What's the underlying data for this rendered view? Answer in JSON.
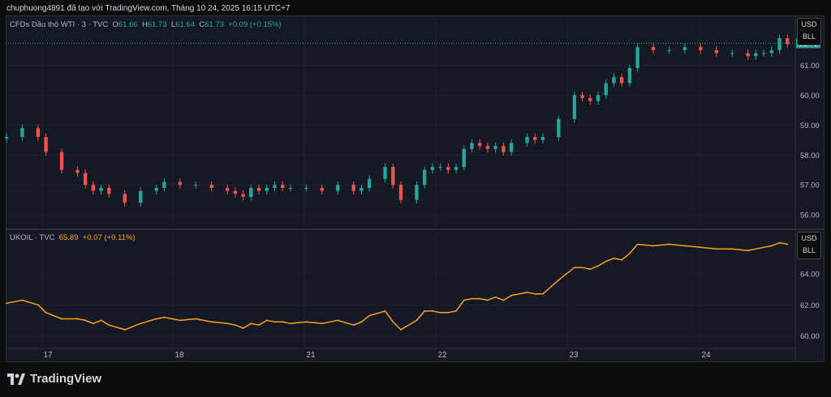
{
  "header": {
    "caption": "chuphuong4891 đã tạo với TradingView.com, Tháng 10 24, 2025 16:15 UTC+7"
  },
  "brand": {
    "name": "TradingView"
  },
  "currency": {
    "line1": "USD",
    "line2": "BLL"
  },
  "colors": {
    "up": "#26a69a",
    "down": "#ef5350",
    "ukoil": "#f7a21b",
    "background": "#151924",
    "grid": "#1e222d"
  },
  "wti_panel": {
    "symbol": "CFDs Dầu thô WTI · 3 · TVC",
    "open_label": "O",
    "open": "61.66",
    "high_label": "H",
    "high": "61.73",
    "low_label": "L",
    "low": "61.64",
    "close_label": "C",
    "close": "61.73",
    "change": "+0.09 (+0.15%)",
    "last_price_tag": "61.73"
  },
  "ukoil_panel": {
    "symbol": "UKOIL · TVC",
    "price": "65.89",
    "change": "+0.07 (+0.11%)"
  },
  "chart_data": [
    {
      "type": "candlestick",
      "title": "CFDs Dầu thô WTI · 3 · TVC",
      "x_tick_labels": [
        "17",
        "18",
        "21",
        "22",
        "23",
        "24"
      ],
      "y_ticks": [
        56.0,
        57.0,
        58.0,
        59.0,
        60.0,
        61.0
      ],
      "ylim": [
        55.6,
        62.2
      ],
      "grid": true,
      "series": [
        {
          "x": [
            0,
            2,
            4,
            5,
            7,
            9,
            10,
            11,
            12,
            13,
            15,
            17,
            19,
            20,
            22,
            24,
            26,
            28,
            29,
            30,
            31,
            32,
            33,
            34,
            35,
            36,
            38,
            40,
            42,
            44,
            45,
            46,
            48,
            49,
            50,
            52,
            53,
            54,
            55,
            56,
            57,
            58,
            59,
            60,
            61,
            62,
            63,
            64,
            66,
            67,
            68,
            70,
            72,
            73,
            74,
            75,
            76,
            77,
            78,
            79,
            80,
            82,
            84,
            86,
            88,
            90,
            92,
            94,
            95,
            96,
            97,
            98,
            99
          ],
          "close": [
            58.6,
            58.9,
            58.6,
            58.1,
            57.5,
            57.4,
            57.0,
            56.8,
            56.9,
            56.7,
            56.4,
            56.8,
            56.9,
            57.1,
            57.0,
            57.0,
            56.9,
            56.8,
            56.7,
            56.6,
            56.9,
            56.8,
            56.9,
            57.0,
            56.9,
            56.9,
            56.9,
            56.8,
            57.0,
            56.8,
            56.9,
            57.2,
            57.6,
            57.0,
            56.5,
            57.0,
            57.5,
            57.6,
            57.6,
            57.5,
            57.6,
            58.2,
            58.4,
            58.3,
            58.2,
            58.3,
            58.1,
            58.4,
            58.6,
            58.5,
            58.6,
            59.2,
            60.0,
            59.9,
            59.8,
            60.0,
            60.4,
            60.6,
            60.4,
            60.9,
            61.6,
            61.5,
            61.5,
            61.6,
            61.5,
            61.4,
            61.4,
            61.3,
            61.4,
            61.4,
            61.5,
            61.9,
            61.7
          ]
        }
      ]
    },
    {
      "type": "line",
      "title": "UKOIL · TVC",
      "x_tick_labels": [
        "17",
        "18",
        "21",
        "22",
        "23",
        "24"
      ],
      "y_ticks": [
        60.0,
        62.0,
        64.0
      ],
      "ylim": [
        59.3,
        66.5
      ],
      "grid": true,
      "series": [
        {
          "x": [
            0,
            2,
            4,
            5,
            7,
            9,
            10,
            11,
            12,
            13,
            15,
            17,
            19,
            20,
            22,
            24,
            26,
            28,
            29,
            30,
            31,
            32,
            33,
            34,
            35,
            36,
            38,
            40,
            42,
            44,
            45,
            46,
            48,
            49,
            50,
            52,
            53,
            54,
            55,
            56,
            57,
            58,
            59,
            60,
            61,
            62,
            63,
            64,
            66,
            67,
            68,
            70,
            72,
            73,
            74,
            75,
            76,
            77,
            78,
            79,
            80,
            82,
            84,
            86,
            88,
            90,
            92,
            94,
            95,
            96,
            97,
            98,
            99
          ],
          "values": [
            62.1,
            62.3,
            62.0,
            61.5,
            61.1,
            61.1,
            61.0,
            60.8,
            61.0,
            60.7,
            60.4,
            60.8,
            61.1,
            61.2,
            61.0,
            61.1,
            60.9,
            60.8,
            60.7,
            60.5,
            60.8,
            60.7,
            61.0,
            60.9,
            60.9,
            60.8,
            60.9,
            60.8,
            61.0,
            60.7,
            60.9,
            61.3,
            61.6,
            60.9,
            60.4,
            61.0,
            61.6,
            61.6,
            61.5,
            61.5,
            61.6,
            62.3,
            62.4,
            62.4,
            62.3,
            62.5,
            62.3,
            62.6,
            62.8,
            62.7,
            62.7,
            63.6,
            64.4,
            64.4,
            64.3,
            64.5,
            64.8,
            65.0,
            64.9,
            65.3,
            65.9,
            65.8,
            65.9,
            65.8,
            65.7,
            65.6,
            65.6,
            65.5,
            65.6,
            65.7,
            65.8,
            66.0,
            65.9
          ]
        }
      ]
    }
  ]
}
